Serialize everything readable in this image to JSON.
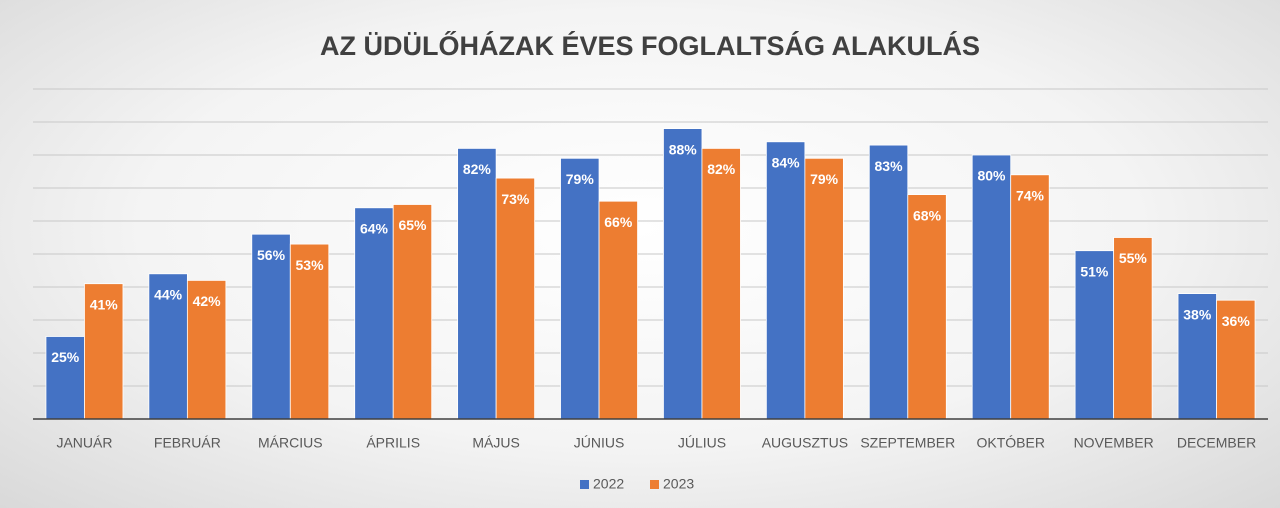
{
  "chart_data": {
    "type": "bar",
    "title": "AZ ÜDÜLŐHÁZAK ÉVES FOGLALTSÁG ALAKULÁS",
    "categories": [
      "JANUÁR",
      "FEBRUÁR",
      "MÁRCIUS",
      "ÁPRILIS",
      "MÁJUS",
      "JÚNIUS",
      "JÚLIUS",
      "AUGUSZTUS",
      "SZEPTEMBER",
      "OKTÓBER",
      "NOVEMBER",
      "DECEMBER"
    ],
    "series": [
      {
        "name": "2022",
        "color": "#4472c4",
        "values": [
          25,
          44,
          56,
          64,
          82,
          79,
          88,
          84,
          83,
          80,
          51,
          38
        ],
        "value_labels": [
          "25%",
          "44%",
          "56%",
          "64%",
          "82%",
          "79%",
          "88%",
          "84%",
          "83%",
          "80%",
          "51%",
          "38%"
        ]
      },
      {
        "name": "2023",
        "color": "#ed7d31",
        "values": [
          41,
          42,
          53,
          65,
          73,
          66,
          82,
          79,
          68,
          74,
          55,
          36
        ],
        "value_labels": [
          "41%",
          "42%",
          "53%",
          "65%",
          "73%",
          "66%",
          "82%",
          "79%",
          "68%",
          "74%",
          "55%",
          "36%"
        ]
      }
    ],
    "ylim": [
      0,
      100
    ],
    "yticks": [
      0,
      10,
      20,
      30,
      40,
      50,
      60,
      70,
      80,
      90,
      100
    ],
    "grid": true,
    "legend": "bottom"
  }
}
